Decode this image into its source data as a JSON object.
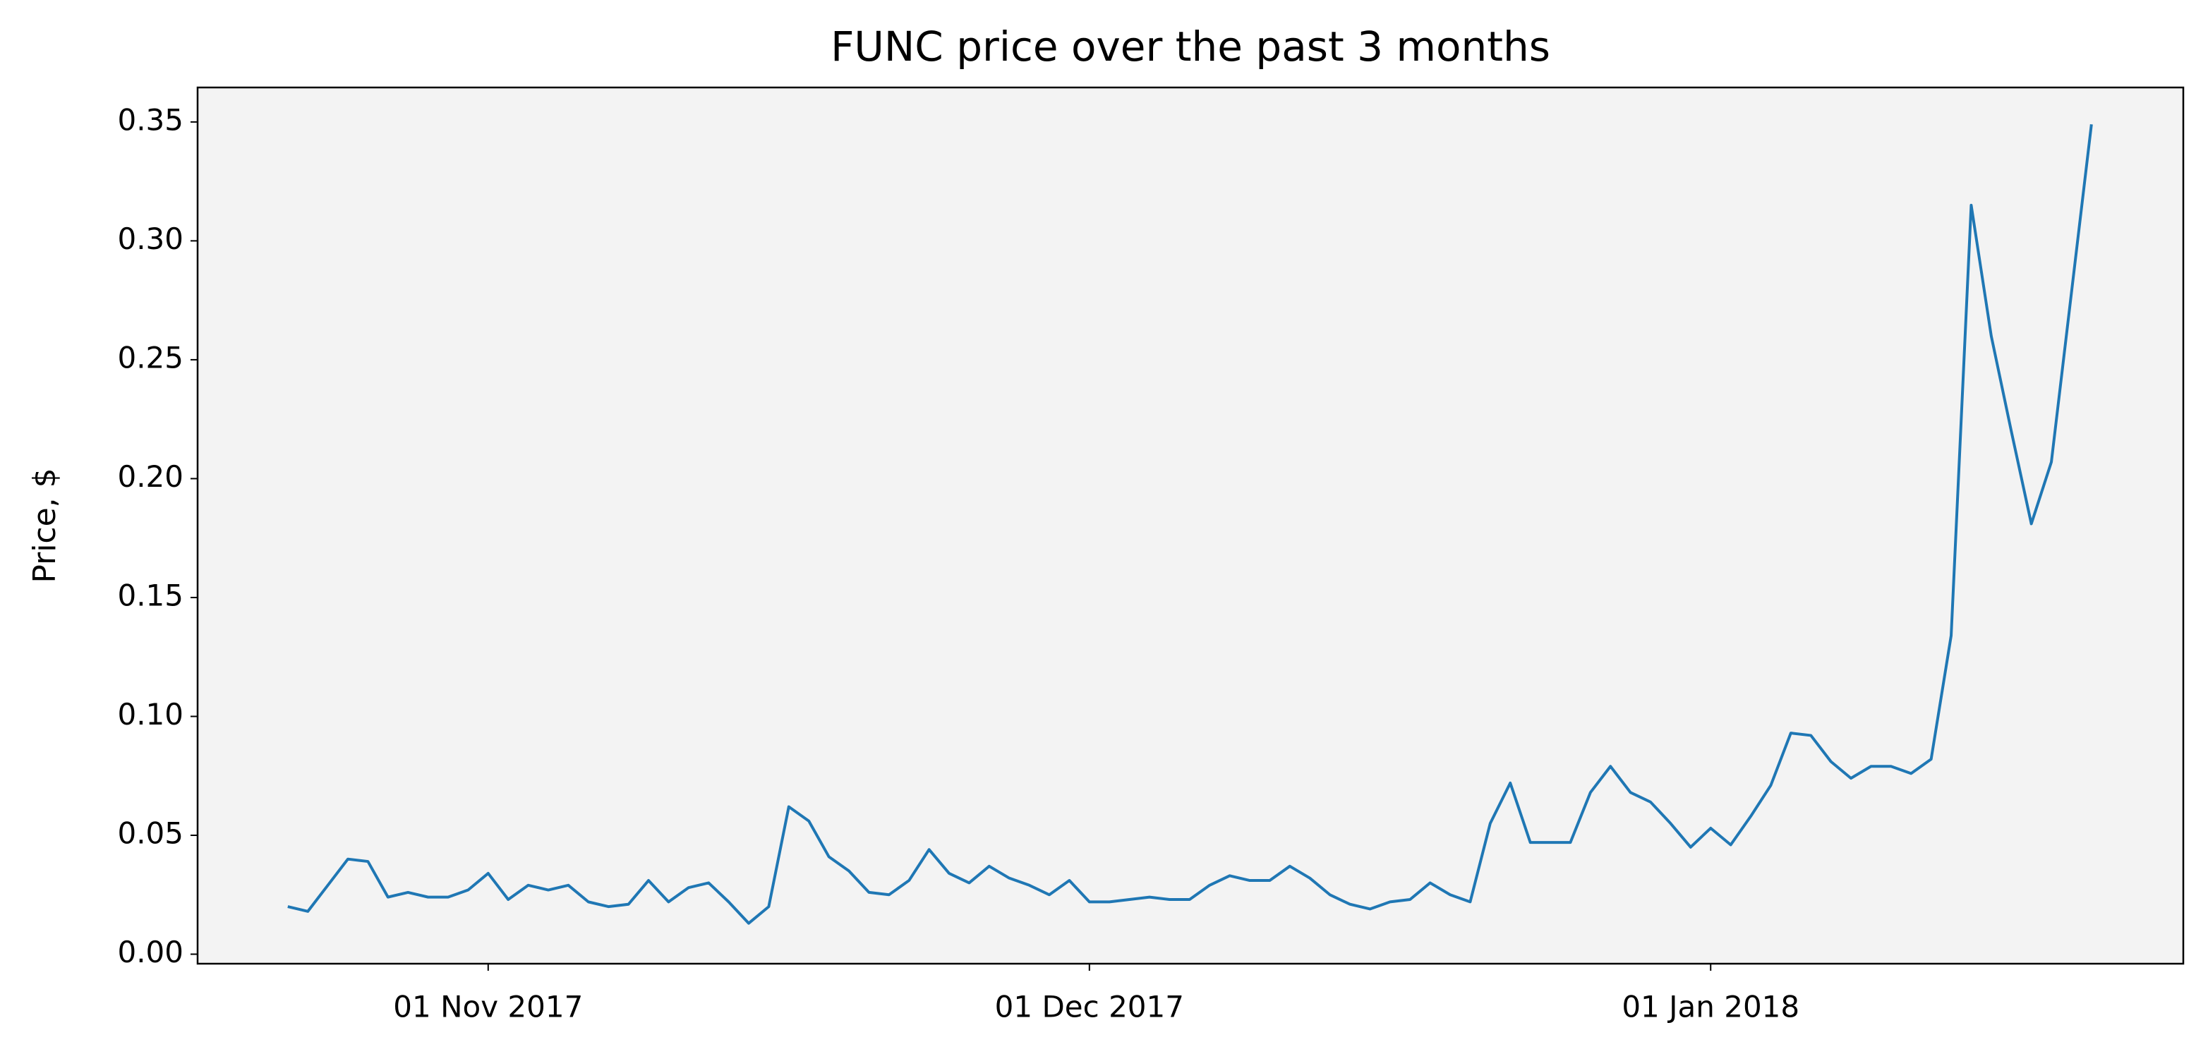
{
  "chart_data": {
    "type": "line",
    "title": "FUNC price over the past 3 months",
    "y_label": "Price, $",
    "x": [
      "2017-10-22",
      "2017-10-23",
      "2017-10-24",
      "2017-10-25",
      "2017-10-26",
      "2017-10-27",
      "2017-10-28",
      "2017-10-29",
      "2017-10-30",
      "2017-10-31",
      "2017-11-01",
      "2017-11-02",
      "2017-11-03",
      "2017-11-04",
      "2017-11-05",
      "2017-11-06",
      "2017-11-07",
      "2017-11-08",
      "2017-11-09",
      "2017-11-10",
      "2017-11-11",
      "2017-11-12",
      "2017-11-13",
      "2017-11-14",
      "2017-11-15",
      "2017-11-16",
      "2017-11-17",
      "2017-11-18",
      "2017-11-19",
      "2017-11-20",
      "2017-11-21",
      "2017-11-22",
      "2017-11-23",
      "2017-11-24",
      "2017-11-25",
      "2017-11-26",
      "2017-11-27",
      "2017-11-28",
      "2017-11-29",
      "2017-11-30",
      "2017-12-01",
      "2017-12-02",
      "2017-12-03",
      "2017-12-04",
      "2017-12-05",
      "2017-12-06",
      "2017-12-07",
      "2017-12-08",
      "2017-12-09",
      "2017-12-10",
      "2017-12-11",
      "2017-12-12",
      "2017-12-13",
      "2017-12-14",
      "2017-12-15",
      "2017-12-16",
      "2017-12-17",
      "2017-12-18",
      "2017-12-19",
      "2017-12-20",
      "2017-12-21",
      "2017-12-22",
      "2017-12-23",
      "2017-12-24",
      "2017-12-25",
      "2017-12-26",
      "2017-12-27",
      "2017-12-28",
      "2017-12-29",
      "2017-12-30",
      "2017-12-31",
      "2018-01-01",
      "2018-01-02",
      "2018-01-03",
      "2018-01-04",
      "2018-01-05",
      "2018-01-06",
      "2018-01-07",
      "2018-01-08",
      "2018-01-09",
      "2018-01-10",
      "2018-01-11",
      "2018-01-12",
      "2018-01-13",
      "2018-01-14",
      "2018-01-15",
      "2018-01-16",
      "2018-01-17",
      "2018-01-18",
      "2018-01-19",
      "2018-01-20"
    ],
    "values": [
      0.02,
      0.018,
      0.029,
      0.04,
      0.039,
      0.024,
      0.026,
      0.024,
      0.024,
      0.027,
      0.034,
      0.023,
      0.029,
      0.027,
      0.029,
      0.022,
      0.02,
      0.021,
      0.031,
      0.022,
      0.028,
      0.03,
      0.022,
      0.013,
      0.02,
      0.062,
      0.056,
      0.041,
      0.035,
      0.026,
      0.025,
      0.031,
      0.044,
      0.034,
      0.03,
      0.037,
      0.032,
      0.029,
      0.025,
      0.031,
      0.022,
      0.022,
      0.023,
      0.024,
      0.023,
      0.023,
      0.029,
      0.033,
      0.031,
      0.031,
      0.037,
      0.032,
      0.025,
      0.021,
      0.019,
      0.022,
      0.023,
      0.03,
      0.025,
      0.022,
      0.055,
      0.072,
      0.047,
      0.047,
      0.047,
      0.068,
      0.079,
      0.068,
      0.064,
      0.055,
      0.045,
      0.053,
      0.046,
      0.058,
      0.071,
      0.093,
      0.092,
      0.081,
      0.074,
      0.079,
      0.079,
      0.076,
      0.082,
      0.134,
      0.315,
      0.26,
      0.22,
      0.181,
      0.207,
      0.278,
      0.349
    ],
    "color": "#1f77b4",
    "xlim": [
      "2017-10-17T12:00:00Z",
      "2018-01-24T14:00:00Z"
    ],
    "xticks": [
      {
        "value": "2017-11-01",
        "label": "01 Nov 2017"
      },
      {
        "value": "2017-12-01",
        "label": "01 Dec 2017"
      },
      {
        "value": "2018-01-01",
        "label": "01 Jan 2018"
      }
    ],
    "ylim": [
      -0.004,
      0.3645
    ],
    "yticks": [
      {
        "value": 0,
        "label": "0.00"
      },
      0.05,
      {
        "value": 0.1,
        "label": "0.10"
      },
      0.15,
      {
        "value": 0.2,
        "label": "0.20"
      },
      0.25,
      {
        "value": 0.3,
        "label": "0.30"
      },
      0.35
    ],
    "background": "#f3f3f3"
  }
}
